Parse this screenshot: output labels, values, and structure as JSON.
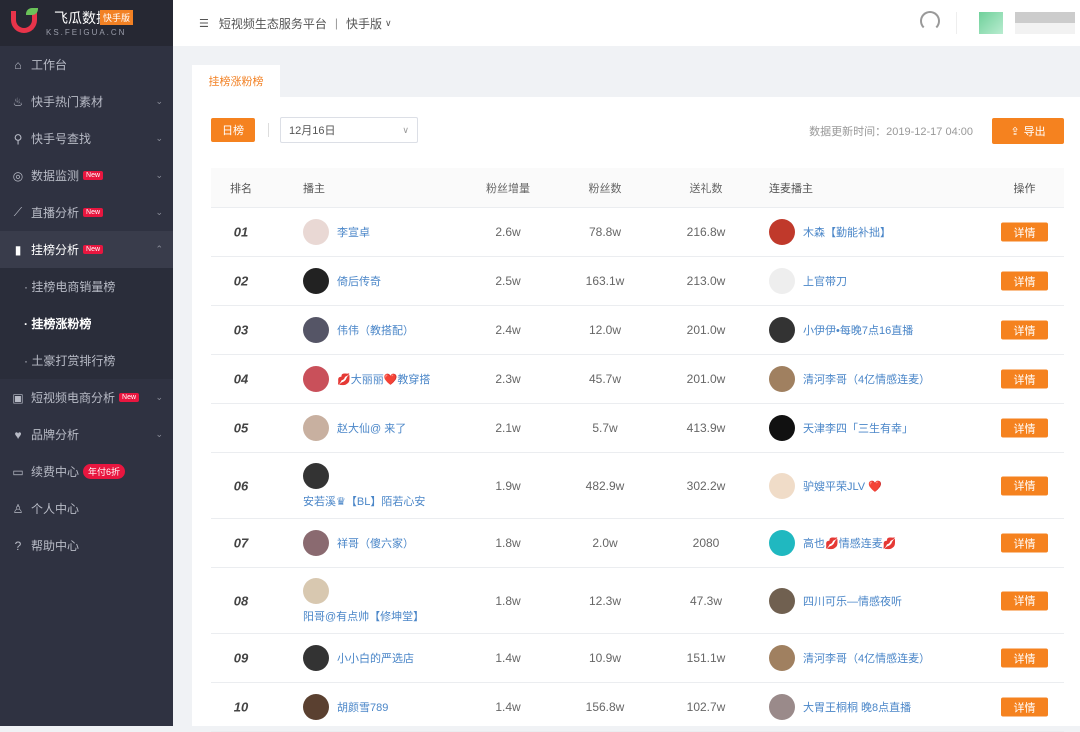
{
  "brand": {
    "name": "飞瓜数据",
    "tag": "快手版",
    "url": "KS.FEIGUA.CN"
  },
  "header": {
    "platform": "短视频生态服务平台",
    "separator": "|",
    "version": "快手版"
  },
  "sidebar": {
    "items": [
      {
        "label": "工作台",
        "icon": "home-icon",
        "glyph": "⌂"
      },
      {
        "label": "快手热门素材",
        "icon": "flame-icon",
        "glyph": "♨",
        "chev": "⌄"
      },
      {
        "label": "快手号查找",
        "icon": "search-icon",
        "glyph": "⚲",
        "chev": "⌄"
      },
      {
        "label": "数据监测",
        "icon": "monitor-icon",
        "glyph": "◎",
        "badge": "New",
        "chev": "⌄"
      },
      {
        "label": "直播分析",
        "icon": "trend-icon",
        "glyph": "⟋",
        "badge": "New",
        "chev": "⌄"
      },
      {
        "label": "挂榜分析",
        "icon": "bar-chart-icon",
        "glyph": "▮",
        "badge": "New",
        "chev": "⌃"
      },
      {
        "label": "短视频电商分析",
        "icon": "bag-icon",
        "glyph": "▣",
        "badge": "New",
        "chev": "⌄"
      },
      {
        "label": "品牌分析",
        "icon": "diamond-icon",
        "glyph": "♥",
        "chev": "⌄"
      },
      {
        "label": "续费中心",
        "icon": "card-icon",
        "glyph": "▭",
        "badge": "年付6折"
      },
      {
        "label": "个人中心",
        "icon": "user-icon",
        "glyph": "♙"
      },
      {
        "label": "帮助中心",
        "icon": "help-icon",
        "glyph": "?"
      }
    ],
    "sub_items": [
      "· 挂榜电商销量榜",
      "· 挂榜涨粉榜",
      "· 土豪打赏排行榜"
    ]
  },
  "tab": "挂榜涨粉榜",
  "toolbar": {
    "daily": "日榜",
    "date": "12月16日",
    "update_time": "数据更新时间：2019-12-17 04:00",
    "export": "导出"
  },
  "colors": {
    "accent": "#f5821f",
    "link": "#4a86c8",
    "sidebar": "#2f3241",
    "badge": "#e8163f"
  },
  "table": {
    "headers": [
      "排名",
      "播主",
      "粉丝增量",
      "粉丝数",
      "送礼数",
      "连麦播主",
      "操作"
    ],
    "detail_label": "详情",
    "rows": [
      {
        "rank": "01",
        "host": "李宣卓",
        "inc": "2.6w",
        "fans": "78.8w",
        "gift": "216.8w",
        "lianmai": "木森【勤能补拙】"
      },
      {
        "rank": "02",
        "host": "倚后传奇",
        "inc": "2.5w",
        "fans": "163.1w",
        "gift": "213.0w",
        "lianmai": "上官带刀"
      },
      {
        "rank": "03",
        "host": "伟伟（教搭配）",
        "inc": "2.4w",
        "fans": "12.0w",
        "gift": "201.0w",
        "lianmai": "小伊伊•每晚7点16直播"
      },
      {
        "rank": "04",
        "host": "💋大丽丽❤️教穿搭",
        "inc": "2.3w",
        "fans": "45.7w",
        "gift": "201.0w",
        "lianmai": "清河李哥（4亿情感连麦）"
      },
      {
        "rank": "05",
        "host": "赵大仙@ 来了",
        "inc": "2.1w",
        "fans": "5.7w",
        "gift": "413.9w",
        "lianmai": "天津李四「三生有幸」"
      },
      {
        "rank": "06",
        "host": "安若溪♛【BL】陌若心安",
        "inc": "1.9w",
        "fans": "482.9w",
        "gift": "302.2w",
        "lianmai": "驴嫂平荣JLV ❤️",
        "tall": true
      },
      {
        "rank": "07",
        "host": "祥哥（傻六家）",
        "inc": "1.8w",
        "fans": "2.0w",
        "gift": "2080",
        "lianmai": "高也💋情感连麦💋"
      },
      {
        "rank": "08",
        "host": "阳哥@有点帅【修坤堂】",
        "inc": "1.8w",
        "fans": "12.3w",
        "gift": "47.3w",
        "lianmai": "四川可乐—情感夜听",
        "tall": true
      },
      {
        "rank": "09",
        "host": "小小白的严选店",
        "inc": "1.4w",
        "fans": "10.9w",
        "gift": "151.1w",
        "lianmai": "清河李哥（4亿情感连麦）"
      },
      {
        "rank": "10",
        "host": "胡颜雪789",
        "inc": "1.4w",
        "fans": "156.8w",
        "gift": "102.7w",
        "lianmai": "大胃王桐桐 晚8点直播"
      }
    ]
  }
}
